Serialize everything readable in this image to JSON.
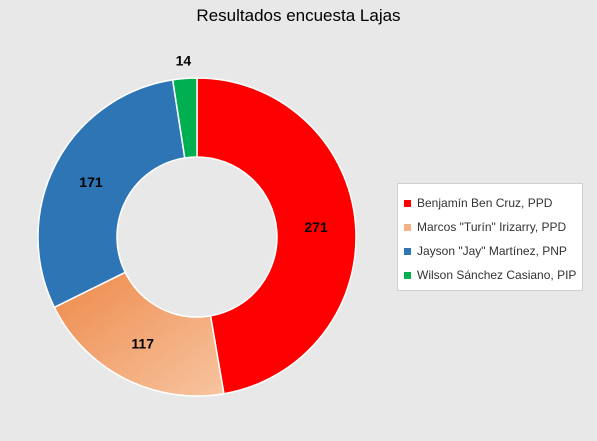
{
  "chart_data": {
    "type": "pie",
    "title": "Resultados encuesta Lajas",
    "series": [
      {
        "name": "Benjamín Ben Cruz, PPD",
        "value": 271,
        "color": "#ff0000"
      },
      {
        "name": "Marcos \"Turín\" Irizarry, PPD",
        "value": 117,
        "color": "#f4b183"
      },
      {
        "name": "Jayson \"Jay\" Martínez, PNP",
        "value": 171,
        "color": "#2e75b6"
      },
      {
        "name": "Wilson Sánchez Casiano, PIP",
        "value": 14,
        "color": "#00b050"
      }
    ],
    "donut": true,
    "legend_position": "right"
  }
}
